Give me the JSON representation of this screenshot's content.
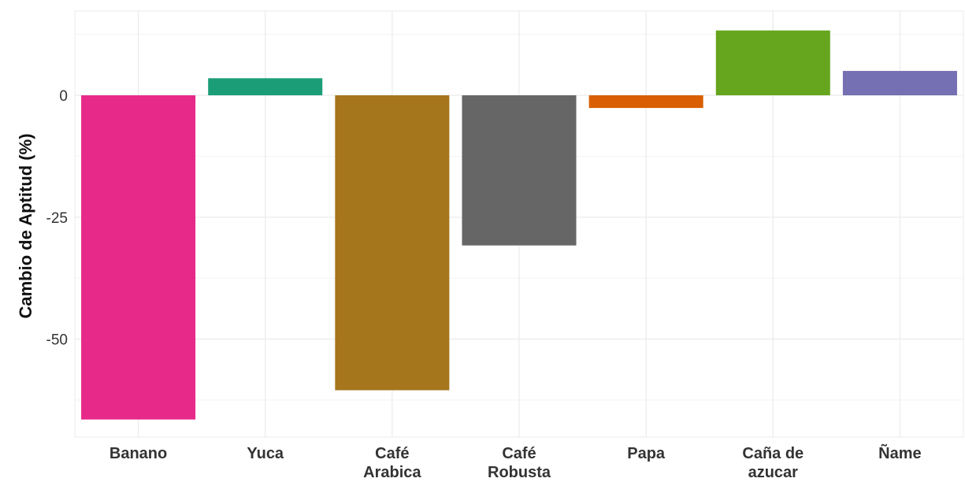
{
  "chart_data": {
    "type": "bar",
    "categories": [
      [
        "Banano"
      ],
      [
        "Yuca"
      ],
      [
        "Café",
        "Arabica"
      ],
      [
        "Café",
        "Robusta"
      ],
      [
        "Papa"
      ],
      [
        "Caña de",
        "azucar"
      ],
      [
        "Ñame"
      ]
    ],
    "values": [
      -66.5,
      3.5,
      -60.5,
      -30.8,
      -2.6,
      13.3,
      5.0
    ],
    "colors": [
      "#e7298a",
      "#1b9e77",
      "#a6761d",
      "#666666",
      "#d95f02",
      "#66a61e",
      "#7570b3"
    ],
    "title": "",
    "xlabel": "",
    "ylabel": "Cambio de Aptitud (%)",
    "ylim": [
      -70,
      17.5
    ],
    "yticks": [
      0,
      -25,
      -50
    ],
    "ytick_labels": [
      "0",
      "-25",
      "-50"
    ],
    "grid": true,
    "legend": "none"
  }
}
